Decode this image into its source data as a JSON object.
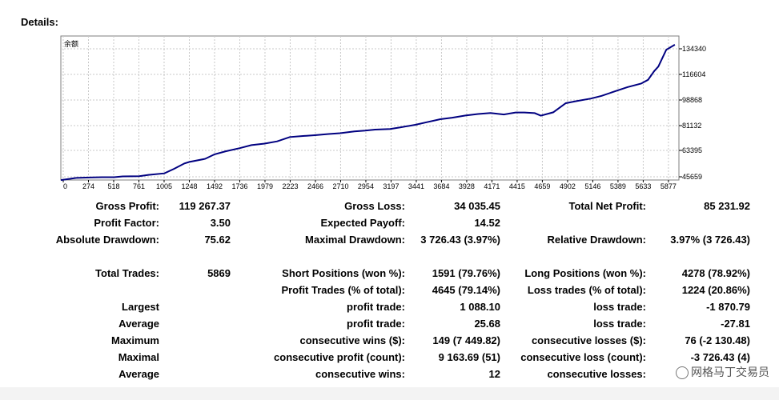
{
  "page": {
    "title": "Details:"
  },
  "chart_data": {
    "type": "line",
    "legend_label": "余额",
    "x_ticks": [
      "0",
      "274",
      "518",
      "761",
      "1005",
      "1248",
      "1492",
      "1736",
      "1979",
      "2223",
      "2466",
      "2710",
      "2954",
      "3197",
      "3441",
      "3684",
      "3928",
      "4171",
      "4415",
      "4659",
      "4902",
      "5146",
      "5389",
      "5633",
      "5877"
    ],
    "y_ticks": [
      "134340",
      "116604",
      "98868",
      "81132",
      "63395",
      "45659"
    ],
    "xlim": [
      0,
      6000
    ],
    "ylim": [
      45659,
      140000
    ],
    "series": [
      {
        "color": "#000080",
        "x": [
          0,
          150,
          274,
          400,
          518,
          600,
          761,
          850,
          1005,
          1100,
          1200,
          1248,
          1400,
          1492,
          1600,
          1736,
          1850,
          1979,
          2100,
          2223,
          2350,
          2466,
          2600,
          2710,
          2850,
          2954,
          3050,
          3197,
          3300,
          3441,
          3550,
          3684,
          3800,
          3928,
          4050,
          4171,
          4300,
          4415,
          4500,
          4600,
          4659,
          4780,
          4902,
          5000,
          5146,
          5250,
          5389,
          5500,
          5633,
          5700,
          5760,
          5800,
          5877,
          5960
        ],
        "y": [
          45600,
          47000,
          47300,
          47500,
          47500,
          48000,
          48200,
          49000,
          50000,
          53000,
          56500,
          57500,
          59500,
          62500,
          64500,
          66500,
          68500,
          69500,
          71000,
          73800,
          74500,
          75000,
          75800,
          76300,
          77500,
          78000,
          78700,
          79100,
          80200,
          81800,
          83500,
          85500,
          86500,
          87900,
          88900,
          89600,
          88600,
          89900,
          89900,
          89500,
          87800,
          90000,
          96000,
          97300,
          99000,
          100800,
          104000,
          106500,
          108800,
          111300,
          117000,
          120000,
          131000,
          134300
        ]
      }
    ]
  },
  "stats": {
    "gross_profit_label": "Gross Profit:",
    "gross_profit": "119 267.37",
    "gross_loss_label": "Gross Loss:",
    "gross_loss": "34 035.45",
    "total_net_profit_label": "Total Net Profit:",
    "total_net_profit": "85 231.92",
    "profit_factor_label": "Profit Factor:",
    "profit_factor": "3.50",
    "expected_payoff_label": "Expected Payoff:",
    "expected_payoff": "14.52",
    "absolute_drawdown_label": "Absolute Drawdown:",
    "absolute_drawdown": "75.62",
    "maximal_drawdown_label": "Maximal Drawdown:",
    "maximal_drawdown": "3 726.43 (3.97%)",
    "relative_drawdown_label": "Relative Drawdown:",
    "relative_drawdown": "3.97% (3 726.43)",
    "total_trades_label": "Total Trades:",
    "total_trades": "5869",
    "short_positions_label": "Short Positions (won %):",
    "short_positions": "1591 (79.76%)",
    "long_positions_label": "Long Positions (won %):",
    "long_positions": "4278 (78.92%)",
    "profit_trades_label": "Profit Trades (% of total):",
    "profit_trades": "4645 (79.14%)",
    "loss_trades_label": "Loss trades (% of total):",
    "loss_trades": "1224 (20.86%)",
    "largest_label": "Largest",
    "largest_profit_label": "profit trade:",
    "largest_profit": "1 088.10",
    "largest_loss_label": "loss trade:",
    "largest_loss": "-1 870.79",
    "average_label": "Average",
    "average_profit_label": "profit trade:",
    "average_profit": "25.68",
    "average_loss_label": "loss trade:",
    "average_loss": "-27.81",
    "maximum_label": "Maximum",
    "max_cons_wins_label": "consecutive wins ($):",
    "max_cons_wins": "149 (7 449.82)",
    "max_cons_losses_label": "consecutive losses ($):",
    "max_cons_losses": "76 (-2 130.48)",
    "maximal_label": "Maximal",
    "maximal_cons_profit_label": "consecutive profit (count):",
    "maximal_cons_profit": "9 163.69 (51)",
    "maximal_cons_loss_label": "consecutive loss (count):",
    "maximal_cons_loss": "-3 726.43 (4)",
    "average2_label": "Average",
    "avg_cons_wins_label": "consecutive wins:",
    "avg_cons_wins": "12",
    "avg_cons_losses_label": "consecutive losses:"
  },
  "watermark": "网格马丁交易员"
}
